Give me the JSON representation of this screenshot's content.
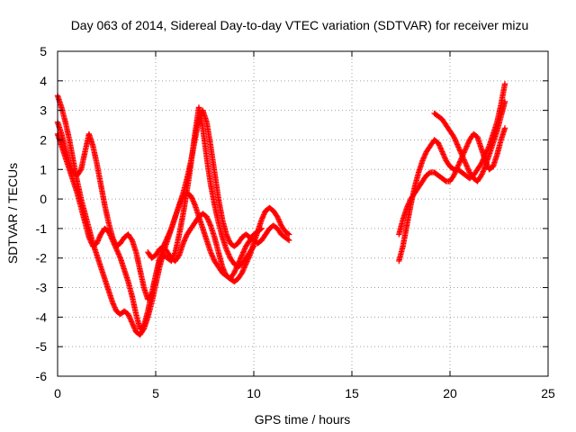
{
  "chart_data": {
    "type": "scatter",
    "title": "Day 063 of 2014, Sidereal Day-to-day VTEC variation (SDTVAR) for receiver mizu",
    "xlabel": "GPS time / hours",
    "ylabel": "SDTVAR / TECUs",
    "xlim": [
      0,
      25
    ],
    "ylim": [
      -6,
      5
    ],
    "xticks": [
      0,
      5,
      10,
      15,
      20,
      25
    ],
    "yticks": [
      -6,
      -5,
      -4,
      -3,
      -2,
      -1,
      0,
      1,
      2,
      3,
      4,
      5
    ],
    "xtick_labels": [
      "0",
      "5",
      "10",
      "15",
      "20",
      "25"
    ],
    "ytick_labels": [
      "-6",
      "-5",
      "-4",
      "-3",
      "-2",
      "-1",
      "0",
      "1",
      "2",
      "3",
      "4",
      "5"
    ],
    "grid": true,
    "marker": "plus",
    "color": "#ff0000",
    "series": [
      {
        "x": [
          0.0,
          0.2,
          0.4,
          0.6,
          0.8,
          1.0,
          1.2,
          1.4,
          1.6,
          1.8,
          2.0,
          2.2,
          2.4,
          2.6,
          2.8,
          3.0,
          3.2,
          3.4,
          3.6,
          3.8,
          4.0,
          4.2,
          4.4,
          4.6,
          4.8,
          5.0,
          5.2,
          5.4,
          5.6,
          5.8,
          6.0,
          6.2,
          6.4,
          6.6,
          6.8,
          7.0,
          7.2,
          7.4,
          7.6,
          7.8,
          8.0,
          8.2,
          8.4,
          8.6,
          8.8,
          9.0,
          9.2,
          9.4,
          9.6,
          9.8,
          10.0,
          10.2,
          10.4,
          10.6,
          10.8,
          11.0,
          11.2,
          11.4,
          11.6,
          11.8
        ],
        "y": [
          3.5,
          3.1,
          2.6,
          2.0,
          1.3,
          0.6,
          0.0,
          -0.5,
          -1.0,
          -1.5,
          -1.9,
          -2.3,
          -2.7,
          -3.1,
          -3.5,
          -3.8,
          -3.9,
          -3.8,
          -3.9,
          -4.2,
          -4.5,
          -4.6,
          -4.4,
          -4.0,
          -3.5,
          -2.9,
          -2.3,
          -1.8,
          -1.4,
          -1.0,
          -0.6,
          -0.2,
          0.1,
          0.2,
          0.1,
          -0.2,
          -0.6,
          -1.0,
          -1.4,
          -1.8,
          -2.1,
          -2.3,
          -2.5,
          -2.6,
          -2.7,
          -2.8,
          -2.7,
          -2.5,
          -2.2,
          -1.9,
          -1.5,
          -1.1,
          -0.7,
          -0.4,
          -0.3,
          -0.4,
          -0.6,
          -0.9,
          -1.1,
          -1.2
        ]
      },
      {
        "x": [
          0.0,
          0.2,
          0.4,
          0.6,
          0.8,
          1.0,
          1.2,
          1.4,
          1.6,
          1.8,
          2.0,
          2.2,
          2.4,
          2.6,
          2.8,
          3.0,
          3.2,
          3.4,
          3.6,
          3.8,
          4.0,
          4.2,
          4.4,
          4.6,
          4.8,
          5.0,
          5.2,
          5.4,
          5.6,
          5.8,
          6.0,
          6.2,
          6.4,
          6.6,
          6.8,
          7.0,
          7.2,
          7.4,
          7.6,
          7.8,
          8.0,
          8.2,
          8.4,
          8.6,
          8.8,
          9.0,
          9.2,
          9.4,
          9.6,
          9.8,
          10.0,
          10.2,
          10.4,
          10.6,
          10.8,
          11.0,
          11.2,
          11.4,
          11.6,
          11.8
        ],
        "y": [
          2.2,
          1.8,
          1.4,
          1.0,
          0.6,
          0.2,
          -0.3,
          -0.8,
          -1.3,
          -1.6,
          -1.5,
          -1.2,
          -1.0,
          -1.1,
          -1.4,
          -1.7,
          -2.0,
          -2.4,
          -2.8,
          -3.3,
          -3.9,
          -4.4,
          -4.3,
          -3.8,
          -3.2,
          -2.6,
          -2.0,
          -1.6,
          -1.3,
          -1.0,
          -0.6,
          -0.2,
          0.2,
          0.7,
          1.3,
          2.0,
          2.7,
          3.0,
          2.6,
          1.8,
          0.9,
          0.0,
          -0.7,
          -1.2,
          -1.5,
          -1.6,
          -1.5,
          -1.3,
          -1.2,
          -1.3,
          -1.4,
          -1.5,
          -1.4,
          -1.2,
          -1.0,
          -0.9,
          -1.0,
          -1.2,
          -1.3,
          -1.4
        ]
      },
      {
        "x": [
          0.0,
          0.2,
          0.4,
          0.6,
          0.8,
          1.0,
          1.2,
          1.4,
          1.6,
          1.8,
          2.0,
          2.2,
          2.4,
          2.6,
          2.8,
          3.0,
          3.2,
          3.4,
          3.6,
          3.8,
          4.0,
          4.2,
          4.4,
          4.6,
          4.8,
          5.0,
          5.2,
          5.4,
          5.6,
          5.8,
          6.0,
          6.2,
          6.4,
          6.6,
          6.8,
          7.0,
          7.2,
          7.4,
          7.6,
          7.8,
          8.0,
          8.2,
          8.4,
          8.6,
          8.8,
          9.0,
          9.2,
          9.4,
          9.6,
          9.8,
          10.0
        ],
        "y": [
          2.6,
          2.2,
          1.7,
          1.2,
          0.9,
          0.8,
          1.0,
          1.6,
          2.2,
          1.8,
          1.2,
          0.5,
          -0.2,
          -0.8,
          -1.3,
          -1.6,
          -1.5,
          -1.3,
          -1.2,
          -1.4,
          -1.8,
          -2.4,
          -3.0,
          -3.4,
          -3.2,
          -2.6,
          -2.1,
          -1.9,
          -2.0,
          -2.1,
          -1.8,
          -1.2,
          -0.5,
          0.3,
          1.2,
          2.2,
          3.1,
          2.4,
          1.4,
          0.5,
          -0.2,
          -0.8,
          -1.3,
          -1.7,
          -2.0,
          -2.2,
          -2.3,
          -2.2,
          -2.0,
          -1.8,
          -1.6
        ]
      },
      {
        "x": [
          4.6,
          4.8,
          5.0,
          5.2,
          5.4,
          5.6,
          5.8,
          6.0,
          6.2,
          6.4,
          6.6,
          6.8,
          7.0,
          7.2,
          7.4,
          7.6,
          7.8,
          8.0,
          8.2,
          8.4,
          8.6,
          8.8,
          9.0,
          9.2,
          9.4,
          9.6,
          9.8,
          10.0,
          10.2,
          10.4
        ],
        "y": [
          -1.8,
          -2.0,
          -1.9,
          -1.7,
          -1.6,
          -1.8,
          -2.0,
          -2.1,
          -1.9,
          -1.5,
          -1.2,
          -1.0,
          -0.8,
          -0.6,
          -0.5,
          -0.6,
          -0.9,
          -1.3,
          -1.8,
          -2.3,
          -2.6,
          -2.7,
          -2.5,
          -2.2,
          -1.9,
          -1.6,
          -1.4,
          -1.2,
          -1.1,
          -1.0
        ]
      },
      {
        "x": [
          17.4,
          17.6,
          17.8,
          18.0,
          18.2,
          18.4,
          18.6,
          18.8,
          19.0,
          19.2,
          19.4,
          19.6,
          19.8,
          20.0,
          20.2,
          20.4,
          20.6,
          20.8,
          21.0,
          21.2,
          21.4,
          21.6,
          21.8,
          22.0,
          22.2,
          22.4,
          22.6,
          22.8
        ],
        "y": [
          -2.1,
          -1.6,
          -0.9,
          -0.2,
          0.4,
          0.9,
          1.3,
          1.6,
          1.8,
          2.0,
          1.9,
          1.6,
          1.3,
          1.1,
          1.0,
          1.0,
          0.9,
          0.8,
          0.7,
          0.8,
          1.0,
          1.2,
          1.5,
          1.8,
          2.2,
          2.6,
          3.2,
          3.9
        ]
      },
      {
        "x": [
          17.4,
          17.6,
          17.8,
          18.0,
          18.2,
          18.4,
          18.6,
          18.8,
          19.0,
          19.2,
          19.4,
          19.6,
          19.8,
          20.0,
          20.2,
          20.4,
          20.6,
          20.8,
          21.0,
          21.2,
          21.4,
          21.6,
          21.8,
          22.0,
          22.2,
          22.4,
          22.6,
          22.8
        ],
        "y": [
          -1.2,
          -0.7,
          -0.3,
          0.0,
          0.2,
          0.4,
          0.6,
          0.8,
          0.9,
          0.9,
          0.8,
          0.7,
          0.6,
          0.6,
          0.8,
          1.1,
          1.4,
          1.7,
          2.0,
          2.2,
          2.1,
          1.7,
          1.3,
          1.0,
          1.1,
          1.5,
          2.0,
          2.4
        ]
      },
      {
        "x": [
          19.2,
          19.4,
          19.6,
          19.8,
          20.0,
          20.2,
          20.4,
          20.6,
          20.8,
          21.0,
          21.2,
          21.4,
          21.6,
          21.8,
          22.0,
          22.2,
          22.4,
          22.6,
          22.8
        ],
        "y": [
          2.9,
          2.8,
          2.7,
          2.5,
          2.3,
          2.1,
          1.8,
          1.5,
          1.2,
          0.9,
          0.7,
          0.6,
          0.8,
          1.1,
          1.5,
          1.9,
          2.3,
          2.8,
          3.3
        ]
      }
    ]
  }
}
